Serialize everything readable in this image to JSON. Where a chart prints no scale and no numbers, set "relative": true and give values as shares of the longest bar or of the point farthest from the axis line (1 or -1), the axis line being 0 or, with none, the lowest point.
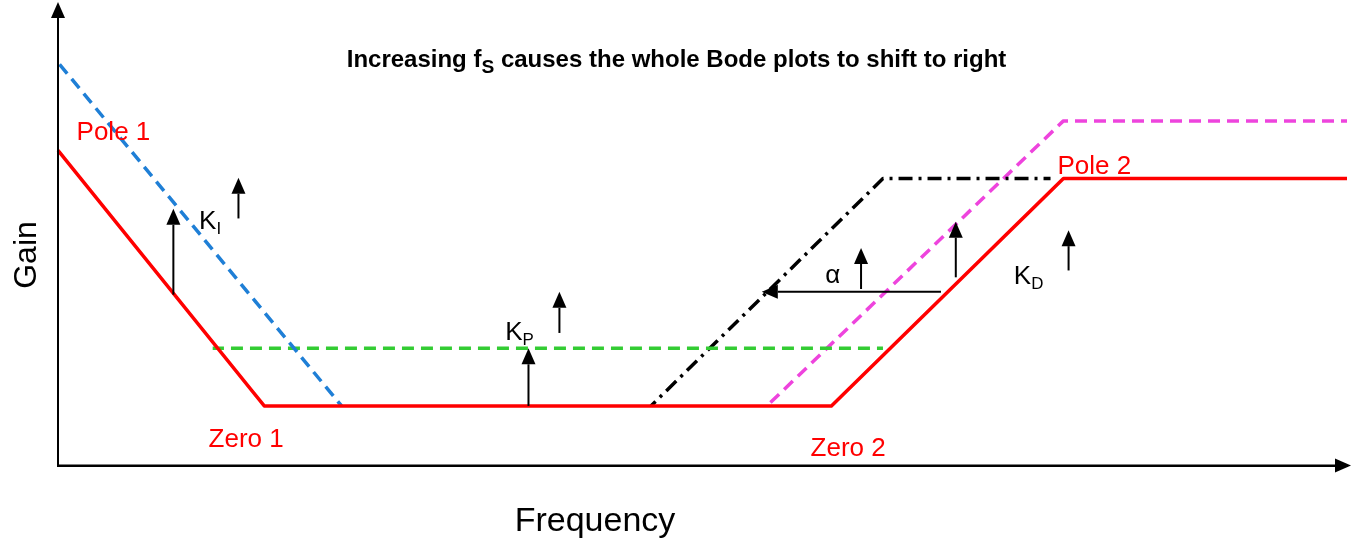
{
  "chart_data": {
    "type": "line",
    "relative": true,
    "title": "Increasing  f$_{S}$  causes the whole Bode plots to shift to right",
    "xlabel": "Frequency",
    "ylabel": "Gain",
    "legend": false,
    "grid": false,
    "marker": "none",
    "categories": [
      null,
      null,
      null,
      null,
      null,
      null,
      null,
      null,
      null,
      null,
      null,
      null,
      null,
      null,
      null,
      null,
      null,
      null,
      null,
      null,
      null,
      null,
      null,
      null,
      null,
      null,
      null,
      null,
      null,
      null,
      null,
      null,
      null,
      null,
      null,
      null,
      null,
      null,
      null,
      null,
      null,
      null,
      null,
      null,
      null,
      null,
      null,
      null,
      null,
      null,
      null,
      null,
      null,
      null,
      null,
      null,
      null,
      null,
      null,
      null,
      null,
      null,
      null,
      null,
      null,
      null,
      null,
      null,
      null,
      null,
      null,
      null,
      null,
      null,
      null,
      null,
      null,
      null,
      null,
      null,
      null,
      null,
      null,
      null,
      null,
      null,
      null,
      null,
      null,
      null,
      null,
      null,
      null,
      null,
      null,
      null,
      null,
      null,
      null,
      null,
      null
    ],
    "series": [
      {
        "color": "#ff0000",
        "line_style": "solid",
        "values": [
          0.782,
          null,
          null,
          null,
          null,
          null,
          null,
          null,
          null,
          null,
          null,
          null,
          null,
          null,
          null,
          null,
          0.148,
          null,
          null,
          null,
          null,
          null,
          null,
          null,
          null,
          null,
          null,
          null,
          null,
          null,
          null,
          null,
          null,
          null,
          null,
          null,
          null,
          null,
          null,
          null,
          null,
          null,
          null,
          null,
          null,
          null,
          null,
          null,
          null,
          null,
          null,
          null,
          null,
          null,
          null,
          null,
          null,
          null,
          null,
          null,
          0.148,
          null,
          null,
          null,
          null,
          null,
          null,
          null,
          null,
          null,
          null,
          null,
          null,
          null,
          null,
          null,
          null,
          null,
          0.712,
          null,
          null,
          null,
          null,
          null,
          null,
          null,
          null,
          null,
          null,
          null,
          null,
          null,
          null,
          null,
          null,
          null,
          null,
          null,
          null,
          null,
          0.712
        ]
      },
      {
        "color": "#1f7fd6",
        "line_style": "dashed",
        "values": [
          1.0,
          null,
          null,
          null,
          null,
          null,
          null,
          null,
          null,
          null,
          null,
          null,
          null,
          null,
          null,
          null,
          null,
          null,
          null,
          null,
          null,
          null,
          0.148,
          null,
          null,
          null,
          null,
          null,
          null,
          null,
          null,
          null,
          null,
          null,
          null,
          null,
          null,
          null,
          null,
          null,
          null,
          null,
          null,
          null,
          null,
          null,
          null,
          null,
          null,
          null,
          null,
          null,
          null,
          null,
          null,
          null,
          null,
          null,
          null,
          null,
          null,
          null,
          null,
          null,
          null,
          null,
          null,
          null,
          null,
          null,
          null,
          null,
          null,
          null,
          null,
          null,
          null,
          null,
          null,
          null,
          null,
          null,
          null,
          null,
          null,
          null,
          null,
          null,
          null,
          null,
          null,
          null,
          null,
          null,
          null,
          null,
          null,
          null,
          null,
          null,
          null
        ]
      },
      {
        "color": "#33cc33",
        "line_style": "dashed",
        "values": [
          null,
          null,
          null,
          null,
          null,
          null,
          null,
          null,
          null,
          null,
          null,
          null,
          0.291,
          null,
          null,
          null,
          null,
          null,
          null,
          null,
          null,
          null,
          null,
          null,
          null,
          null,
          null,
          null,
          null,
          null,
          null,
          null,
          null,
          null,
          null,
          null,
          null,
          null,
          null,
          null,
          null,
          null,
          null,
          null,
          null,
          null,
          null,
          null,
          null,
          null,
          null,
          null,
          null,
          null,
          null,
          null,
          null,
          null,
          null,
          null,
          null,
          null,
          null,
          null,
          0.291,
          null,
          null,
          null,
          null,
          null,
          null,
          null,
          null,
          null,
          null,
          null,
          null,
          null,
          null,
          null,
          null,
          null,
          null,
          null,
          null,
          null,
          null,
          null,
          null,
          null,
          null,
          null,
          null,
          null,
          null,
          null,
          null,
          null,
          null,
          null,
          null
        ]
      },
      {
        "color": "#000000",
        "line_style": "dashdot",
        "values": [
          null,
          null,
          null,
          null,
          null,
          null,
          null,
          null,
          null,
          null,
          null,
          null,
          null,
          null,
          null,
          null,
          null,
          null,
          null,
          null,
          null,
          null,
          null,
          null,
          null,
          null,
          null,
          null,
          null,
          null,
          null,
          null,
          null,
          null,
          null,
          null,
          null,
          null,
          null,
          null,
          null,
          null,
          null,
          null,
          null,
          null,
          0.148,
          null,
          null,
          null,
          null,
          null,
          null,
          null,
          null,
          null,
          null,
          null,
          null,
          null,
          null,
          null,
          null,
          null,
          0.712,
          null,
          null,
          null,
          null,
          null,
          null,
          null,
          null,
          null,
          null,
          null,
          null,
          0.712,
          null,
          null,
          null,
          null,
          null,
          null,
          null,
          null,
          null,
          null,
          null,
          null,
          null,
          null,
          null,
          null,
          null,
          null,
          null,
          null,
          null,
          null,
          null
        ]
      },
      {
        "color": "#ee44dd",
        "line_style": "dashed",
        "values": [
          null,
          null,
          null,
          null,
          null,
          null,
          null,
          null,
          null,
          null,
          null,
          null,
          null,
          null,
          null,
          null,
          null,
          null,
          null,
          null,
          null,
          null,
          null,
          null,
          null,
          null,
          null,
          null,
          null,
          null,
          null,
          null,
          null,
          null,
          null,
          null,
          null,
          null,
          null,
          null,
          null,
          null,
          null,
          null,
          null,
          null,
          null,
          null,
          null,
          null,
          null,
          null,
          null,
          null,
          null,
          0.148,
          null,
          null,
          null,
          null,
          null,
          null,
          null,
          null,
          null,
          null,
          null,
          null,
          null,
          null,
          null,
          null,
          null,
          null,
          null,
          null,
          null,
          null,
          0.855,
          null,
          null,
          null,
          null,
          null,
          null,
          null,
          null,
          null,
          null,
          null,
          null,
          null,
          null,
          null,
          null,
          null,
          null,
          null,
          null,
          null,
          0.855
        ]
      }
    ],
    "annotations": [
      "Pole 1",
      "Zero 1",
      "Zero 2",
      "Pole 2",
      "K$_{I}$",
      "K$_{P}$",
      "K$_{D}$",
      "α"
    ]
  }
}
